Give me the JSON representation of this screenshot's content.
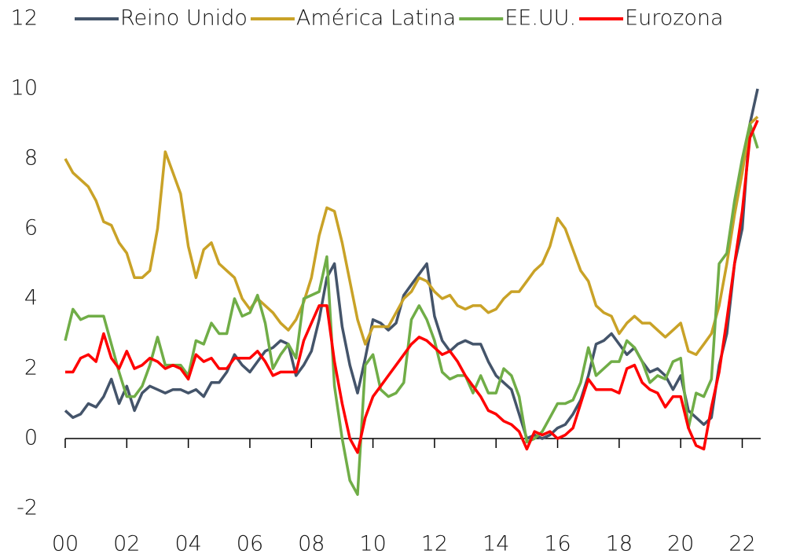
{
  "chart_data": {
    "type": "line",
    "x": [
      2000,
      2000.25,
      2000.5,
      2000.75,
      2001,
      2001.25,
      2001.5,
      2001.75,
      2002,
      2002.25,
      2002.5,
      2002.75,
      2003,
      2003.25,
      2003.5,
      2003.75,
      2004,
      2004.25,
      2004.5,
      2004.75,
      2005,
      2005.25,
      2005.5,
      2005.75,
      2006,
      2006.25,
      2006.5,
      2006.75,
      2007,
      2007.25,
      2007.5,
      2007.75,
      2008,
      2008.25,
      2008.5,
      2008.75,
      2009,
      2009.25,
      2009.5,
      2009.75,
      2010,
      2010.25,
      2010.5,
      2010.75,
      2011,
      2011.25,
      2011.5,
      2011.75,
      2012,
      2012.25,
      2012.5,
      2012.75,
      2013,
      2013.25,
      2013.5,
      2013.75,
      2014,
      2014.25,
      2014.5,
      2014.75,
      2015,
      2015.25,
      2015.5,
      2015.75,
      2016,
      2016.25,
      2016.5,
      2016.75,
      2017,
      2017.25,
      2017.5,
      2017.75,
      2018,
      2018.25,
      2018.5,
      2018.75,
      2019,
      2019.25,
      2019.5,
      2019.75,
      2020,
      2020.25,
      2020.5,
      2020.75,
      2021,
      2021.25,
      2021.5,
      2021.75,
      2022,
      2022.25,
      2022.5
    ],
    "series": [
      {
        "name": "Reino Unido",
        "color": "#44546a",
        "values": [
          0.8,
          0.6,
          0.7,
          1.0,
          0.9,
          1.2,
          1.7,
          1.0,
          1.5,
          0.8,
          1.3,
          1.5,
          1.4,
          1.3,
          1.4,
          1.4,
          1.3,
          1.4,
          1.2,
          1.6,
          1.6,
          1.9,
          2.4,
          2.1,
          1.9,
          2.2,
          2.5,
          2.6,
          2.8,
          2.7,
          1.8,
          2.1,
          2.5,
          3.4,
          4.6,
          5.0,
          3.2,
          2.1,
          1.3,
          2.3,
          3.4,
          3.3,
          3.1,
          3.3,
          4.1,
          4.4,
          4.7,
          5.0,
          3.5,
          2.8,
          2.5,
          2.7,
          2.8,
          2.7,
          2.7,
          2.2,
          1.8,
          1.6,
          1.4,
          0.7,
          0.0,
          0.1,
          0.0,
          0.1,
          0.3,
          0.4,
          0.7,
          1.1,
          1.8,
          2.7,
          2.8,
          3.0,
          2.7,
          2.4,
          2.6,
          2.2,
          1.9,
          2.0,
          1.8,
          1.4,
          1.8,
          0.8,
          0.6,
          0.4,
          0.6,
          2.1,
          3.0,
          5.0,
          6.0,
          9.0,
          10.0
        ]
      },
      {
        "name": "América Latina",
        "color": "#c9a227",
        "values": [
          8.0,
          7.6,
          7.4,
          7.2,
          6.8,
          6.2,
          6.1,
          5.6,
          5.3,
          4.6,
          4.6,
          4.8,
          6.0,
          8.2,
          7.6,
          7.0,
          5.5,
          4.6,
          5.4,
          5.6,
          5.0,
          4.8,
          4.6,
          4.0,
          3.7,
          4.0,
          3.8,
          3.6,
          3.3,
          3.1,
          3.4,
          3.9,
          4.6,
          5.8,
          6.6,
          6.5,
          5.6,
          4.5,
          3.4,
          2.7,
          3.2,
          3.2,
          3.2,
          3.6,
          4.0,
          4.2,
          4.6,
          4.5,
          4.2,
          4.0,
          4.1,
          3.8,
          3.7,
          3.8,
          3.8,
          3.6,
          3.7,
          4.0,
          4.2,
          4.2,
          4.5,
          4.8,
          5.0,
          5.5,
          6.3,
          6.0,
          5.4,
          4.8,
          4.5,
          3.8,
          3.6,
          3.5,
          3.0,
          3.3,
          3.5,
          3.3,
          3.3,
          3.1,
          2.9,
          3.1,
          3.3,
          2.5,
          2.4,
          2.7,
          3.0,
          3.8,
          5.0,
          6.4,
          7.6,
          9.0,
          9.2
        ]
      },
      {
        "name": "EE.UU.",
        "color": "#70ad47",
        "values": [
          2.8,
          3.7,
          3.4,
          3.5,
          3.5,
          3.5,
          2.7,
          1.9,
          1.2,
          1.2,
          1.5,
          2.1,
          2.9,
          2.1,
          2.1,
          2.1,
          1.8,
          2.8,
          2.7,
          3.3,
          3.0,
          3.0,
          4.0,
          3.5,
          3.6,
          4.1,
          3.3,
          2.0,
          2.4,
          2.7,
          2.3,
          4.0,
          4.1,
          4.2,
          5.2,
          1.5,
          0.0,
          -1.2,
          -1.6,
          2.1,
          2.4,
          1.4,
          1.2,
          1.3,
          1.6,
          3.4,
          3.8,
          3.4,
          2.8,
          1.9,
          1.7,
          1.8,
          1.8,
          1.3,
          1.8,
          1.3,
          1.3,
          2.0,
          1.8,
          1.2,
          -0.1,
          0.0,
          0.2,
          0.6,
          1.0,
          1.0,
          1.1,
          1.6,
          2.6,
          1.8,
          2.0,
          2.2,
          2.2,
          2.8,
          2.6,
          2.2,
          1.6,
          1.8,
          1.7,
          2.2,
          2.3,
          0.3,
          1.3,
          1.2,
          1.7,
          5.0,
          5.3,
          6.8,
          8.0,
          9.0,
          8.3
        ]
      },
      {
        "name": "Eurozona",
        "color": "#ff0000",
        "values": [
          1.9,
          1.9,
          2.3,
          2.4,
          2.2,
          3.0,
          2.3,
          2.0,
          2.5,
          2.0,
          2.1,
          2.3,
          2.2,
          2.0,
          2.1,
          2.0,
          1.7,
          2.4,
          2.2,
          2.3,
          2.0,
          2.0,
          2.3,
          2.3,
          2.3,
          2.5,
          2.2,
          1.8,
          1.9,
          1.9,
          1.9,
          2.8,
          3.3,
          3.8,
          3.8,
          2.2,
          1.0,
          0.0,
          -0.4,
          0.6,
          1.2,
          1.5,
          1.8,
          2.1,
          2.4,
          2.7,
          2.9,
          2.8,
          2.6,
          2.4,
          2.5,
          2.2,
          1.8,
          1.5,
          1.2,
          0.8,
          0.7,
          0.5,
          0.4,
          0.2,
          -0.3,
          0.2,
          0.1,
          0.2,
          0.0,
          0.1,
          0.3,
          1.0,
          1.7,
          1.4,
          1.4,
          1.4,
          1.3,
          2.0,
          2.1,
          1.6,
          1.4,
          1.3,
          0.9,
          1.2,
          1.2,
          0.3,
          -0.2,
          -0.3,
          0.9,
          1.9,
          3.4,
          5.0,
          6.5,
          8.6,
          9.1
        ]
      }
    ],
    "xlim": [
      2000,
      2022.6
    ],
    "xticks": [
      {
        "value": 2000,
        "label": "00"
      },
      {
        "value": 2002,
        "label": "02"
      },
      {
        "value": 2004,
        "label": "04"
      },
      {
        "value": 2006,
        "label": "06"
      },
      {
        "value": 2008,
        "label": "08"
      },
      {
        "value": 2010,
        "label": "10"
      },
      {
        "value": 2012,
        "label": "12"
      },
      {
        "value": 2014,
        "label": "14"
      },
      {
        "value": 2016,
        "label": "16"
      },
      {
        "value": 2018,
        "label": "18"
      },
      {
        "value": 2020,
        "label": "20"
      },
      {
        "value": 2022,
        "label": "22"
      }
    ],
    "ylim": [
      -2,
      12
    ],
    "yticks": [
      -2,
      0,
      2,
      4,
      6,
      8,
      10,
      12
    ],
    "legend": "top",
    "grid": false
  }
}
